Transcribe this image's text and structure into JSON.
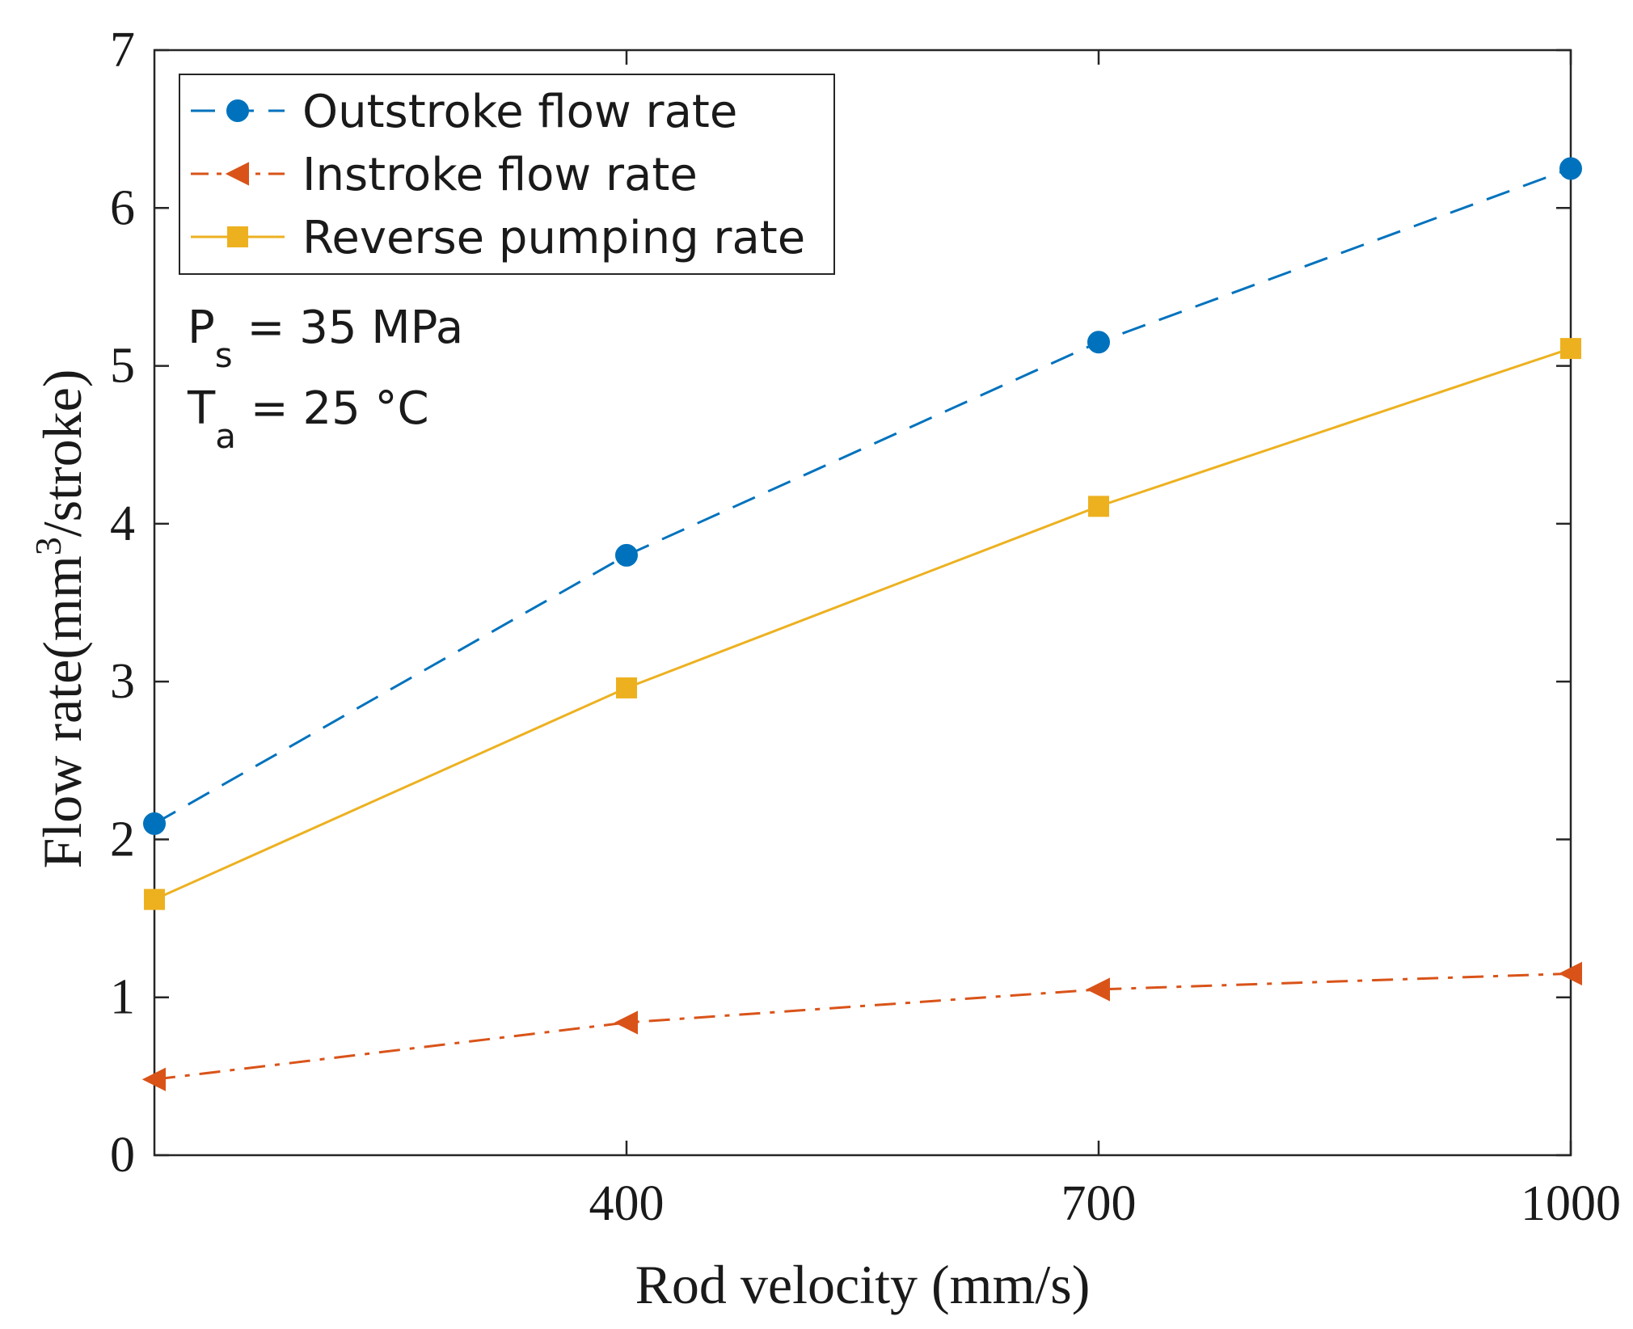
{
  "chart_data": {
    "type": "line",
    "xlabel": "Rod velocity (mm/s)",
    "ylabel": {
      "prefix": "Flow rate(mm",
      "sup": "3",
      "suffix": "/stroke)"
    },
    "xlim": [
      100,
      1000
    ],
    "ylim": [
      0,
      7
    ],
    "xticks": [
      400,
      700,
      1000
    ],
    "yticks": [
      0,
      1,
      2,
      3,
      4,
      5,
      6,
      7
    ],
    "x": [
      100,
      400,
      700,
      1000
    ],
    "series": [
      {
        "name": "Outstroke flow rate",
        "values": [
          2.1,
          3.8,
          5.15,
          6.25
        ],
        "color": "#0072BD",
        "style": "dashed",
        "marker": "circle"
      },
      {
        "name": "Instroke flow rate",
        "values": [
          0.48,
          0.84,
          1.05,
          1.15
        ],
        "color": "#D95319",
        "style": "dashdot",
        "marker": "triangle-left"
      },
      {
        "name": "Reverse pumping rate",
        "values": [
          1.62,
          2.96,
          4.11,
          5.11
        ],
        "color": "#EDB120",
        "style": "solid",
        "marker": "square"
      }
    ],
    "legend_position": "top-left",
    "grid": false,
    "annotations": [
      {
        "main": "P",
        "sub": "s",
        "rest": " = 35 MPa"
      },
      {
        "main": "T",
        "sub": "a",
        "rest": " = 25 °C"
      }
    ]
  }
}
